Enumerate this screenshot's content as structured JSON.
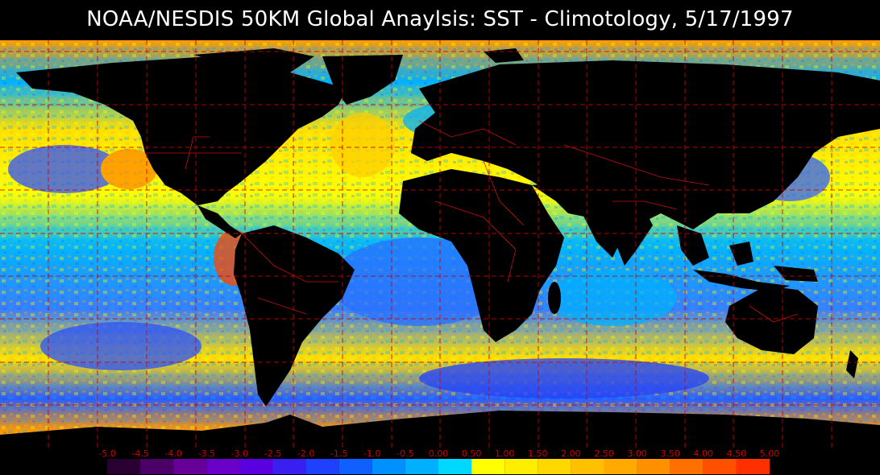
{
  "title": "NOAA/NESDIS 50KM Global Anaylsis:  SST - Climotology, 5/17/1997",
  "legend": {
    "tick_labels": [
      "-5.0",
      "-4.5",
      "-4.0",
      "-3.5",
      "-3.0",
      "-2.5",
      "-2.0",
      "-1.5",
      "-1.0",
      "-0.5",
      "0.00",
      "0.50",
      "1.00",
      "1.50",
      "2.00",
      "2.50",
      "3.00",
      "3.50",
      "4.00",
      "4.50",
      "5.00"
    ],
    "colors": [
      "#2a0033",
      "#4a0066",
      "#660099",
      "#6a00c8",
      "#5a00e0",
      "#3a20f0",
      "#2040ff",
      "#1060ff",
      "#0090ff",
      "#00b0ff",
      "#00d8ff",
      "#ffff00",
      "#ffee00",
      "#ffd800",
      "#ffc000",
      "#ffaa00",
      "#ff9000",
      "#ff7000",
      "#ff5000",
      "#ff3000"
    ]
  },
  "map": {
    "land_color": "#000000",
    "grid_color": "#cc0000",
    "border_color": "#dd1010"
  }
}
